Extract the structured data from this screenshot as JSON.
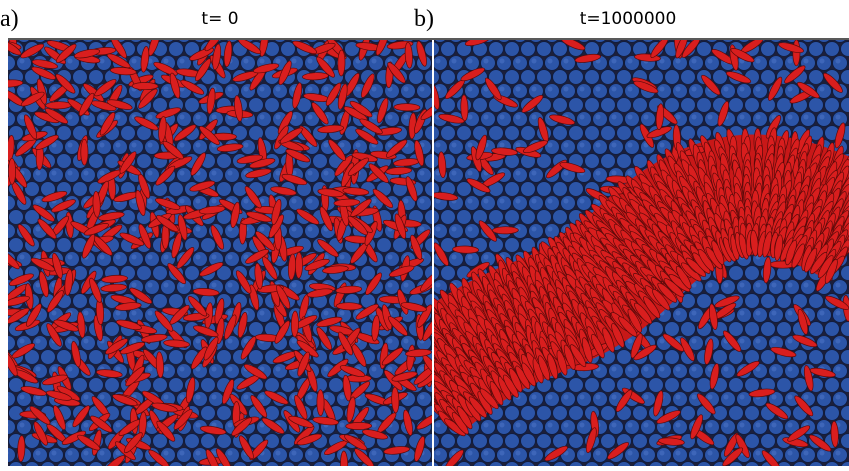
{
  "panels": [
    {
      "label": "a)",
      "time": "t= 0"
    },
    {
      "label": "b)",
      "time": "t=1000000"
    }
  ]
}
